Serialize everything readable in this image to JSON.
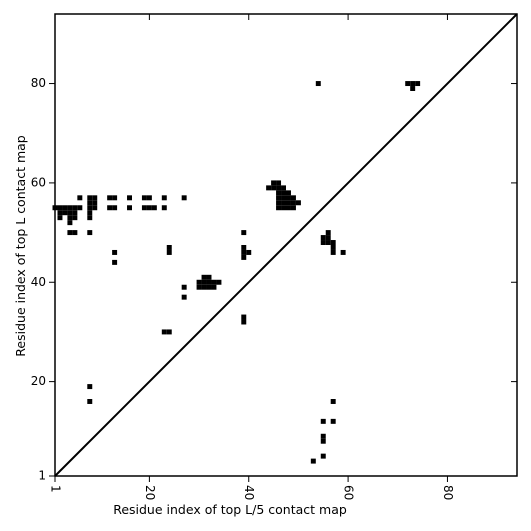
{
  "chart_data": {
    "type": "heatmap",
    "xlabel": "Residue index of top L/5 contact map",
    "ylabel": "Residue index of top L contact map",
    "xlim": [
      1,
      94
    ],
    "ylim": [
      1,
      94
    ],
    "x_ticks": [
      "1",
      "20",
      "40",
      "60",
      "80"
    ],
    "y_ticks": [
      "1",
      "20",
      "40",
      "60",
      "80"
    ],
    "diagonal": true,
    "grid": false,
    "cell_color": "#000000",
    "background_color": "#ffffff",
    "cells": [
      [
        54,
        80
      ],
      [
        72,
        80
      ],
      [
        73,
        80
      ],
      [
        74,
        80
      ],
      [
        73,
        79
      ],
      [
        45,
        60
      ],
      [
        46,
        60
      ],
      [
        44,
        59
      ],
      [
        45,
        59
      ],
      [
        46,
        59
      ],
      [
        47,
        59
      ],
      [
        46,
        58
      ],
      [
        47,
        58
      ],
      [
        48,
        58
      ],
      [
        46,
        57
      ],
      [
        47,
        57
      ],
      [
        48,
        57
      ],
      [
        49,
        57
      ],
      [
        46,
        56
      ],
      [
        47,
        56
      ],
      [
        48,
        56
      ],
      [
        49,
        56
      ],
      [
        50,
        56
      ],
      [
        46,
        55
      ],
      [
        47,
        55
      ],
      [
        48,
        55
      ],
      [
        49,
        55
      ],
      [
        6,
        57
      ],
      [
        8,
        57
      ],
      [
        9,
        57
      ],
      [
        12,
        57
      ],
      [
        13,
        57
      ],
      [
        16,
        57
      ],
      [
        19,
        57
      ],
      [
        20,
        57
      ],
      [
        23,
        57
      ],
      [
        27,
        57
      ],
      [
        8,
        56
      ],
      [
        9,
        56
      ],
      [
        1,
        55
      ],
      [
        2,
        55
      ],
      [
        3,
        55
      ],
      [
        4,
        55
      ],
      [
        5,
        55
      ],
      [
        6,
        55
      ],
      [
        8,
        55
      ],
      [
        9,
        55
      ],
      [
        12,
        55
      ],
      [
        13,
        55
      ],
      [
        16,
        55
      ],
      [
        19,
        55
      ],
      [
        20,
        55
      ],
      [
        21,
        55
      ],
      [
        23,
        55
      ],
      [
        2,
        54
      ],
      [
        3,
        54
      ],
      [
        4,
        54
      ],
      [
        5,
        54
      ],
      [
        8,
        54
      ],
      [
        2,
        53
      ],
      [
        4,
        53
      ],
      [
        5,
        53
      ],
      [
        8,
        53
      ],
      [
        4,
        52
      ],
      [
        4,
        50
      ],
      [
        5,
        50
      ],
      [
        8,
        50
      ],
      [
        39,
        50
      ],
      [
        56,
        50
      ],
      [
        55,
        49
      ],
      [
        56,
        49
      ],
      [
        55,
        48
      ],
      [
        56,
        48
      ],
      [
        57,
        48
      ],
      [
        57,
        47
      ],
      [
        57,
        46
      ],
      [
        59,
        46
      ],
      [
        24,
        47
      ],
      [
        24,
        46
      ],
      [
        39,
        47
      ],
      [
        39,
        46
      ],
      [
        40,
        46
      ],
      [
        39,
        45
      ],
      [
        13,
        46
      ],
      [
        13,
        44
      ],
      [
        31,
        41
      ],
      [
        32,
        41
      ],
      [
        30,
        40
      ],
      [
        31,
        40
      ],
      [
        32,
        40
      ],
      [
        33,
        40
      ],
      [
        34,
        40
      ],
      [
        30,
        39
      ],
      [
        31,
        39
      ],
      [
        32,
        39
      ],
      [
        33,
        39
      ],
      [
        27,
        39
      ],
      [
        27,
        37
      ],
      [
        39,
        33
      ],
      [
        39,
        32
      ],
      [
        23,
        30
      ],
      [
        24,
        30
      ],
      [
        8,
        19
      ],
      [
        8,
        16
      ],
      [
        57,
        16
      ],
      [
        55,
        12
      ],
      [
        57,
        12
      ],
      [
        55,
        9
      ],
      [
        55,
        8
      ],
      [
        55,
        5
      ],
      [
        53,
        4
      ]
    ]
  }
}
